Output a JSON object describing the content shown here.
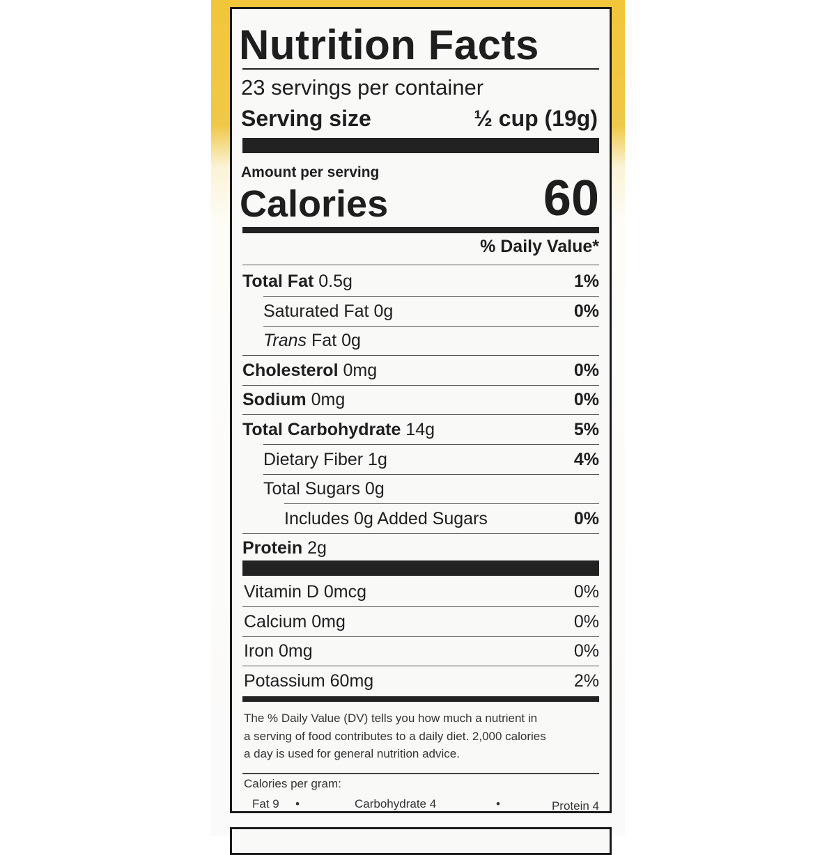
{
  "title": "Nutrition Facts",
  "servings_per_container": "23 servings per container",
  "serving_size_label": "Serving size",
  "serving_size_value": "½ cup (19g)",
  "amount_per_serving": "Amount per serving",
  "calories_label": "Calories",
  "calories_value": "60",
  "dv_header": "% Daily Value*",
  "nutrients": [
    {
      "name": "Total Fat",
      "amount": "0.5g",
      "dv": "1%"
    },
    {
      "name": "Saturated Fat",
      "amount": "0g",
      "dv": "0%"
    },
    {
      "name": "Trans",
      "name_rest": "Fat",
      "amount": "0g",
      "dv": ""
    },
    {
      "name": "Cholesterol",
      "amount": "0mg",
      "dv": "0%"
    },
    {
      "name": "Sodium",
      "amount": "0mg",
      "dv": "0%"
    },
    {
      "name": "Total Carbohydrate",
      "amount": "14g",
      "dv": "5%"
    },
    {
      "name": "Dietary Fiber",
      "amount": "1g",
      "dv": "4%"
    },
    {
      "name": "Total Sugars",
      "amount": "0g",
      "dv": ""
    },
    {
      "name": "Includes 0g Added Sugars",
      "amount": "",
      "dv": "0%"
    },
    {
      "name": "Protein",
      "amount": "2g",
      "dv": ""
    }
  ],
  "vitamins": [
    {
      "name": "Vitamin D 0mcg",
      "dv": "0%"
    },
    {
      "name": "Calcium 0mg",
      "dv": "0%"
    },
    {
      "name": "Iron 0mg",
      "dv": "0%"
    },
    {
      "name": "Potassium 60mg",
      "dv": "2%"
    }
  ],
  "footnote": [
    "The % Daily Value (DV) tells you how much a nutrient in",
    "a serving of food contributes to a daily diet. 2,000 calories",
    "a day is used for general nutrition advice."
  ],
  "calories_per_gram": {
    "label": "Calories per gram:",
    "fat": "Fat 9",
    "carb": "Carbohydrate 4",
    "protein": "Protein 4",
    "separator": "•"
  },
  "colors": {
    "package_yellow": "#f2c63a",
    "ink": "#1e1e1e"
  }
}
